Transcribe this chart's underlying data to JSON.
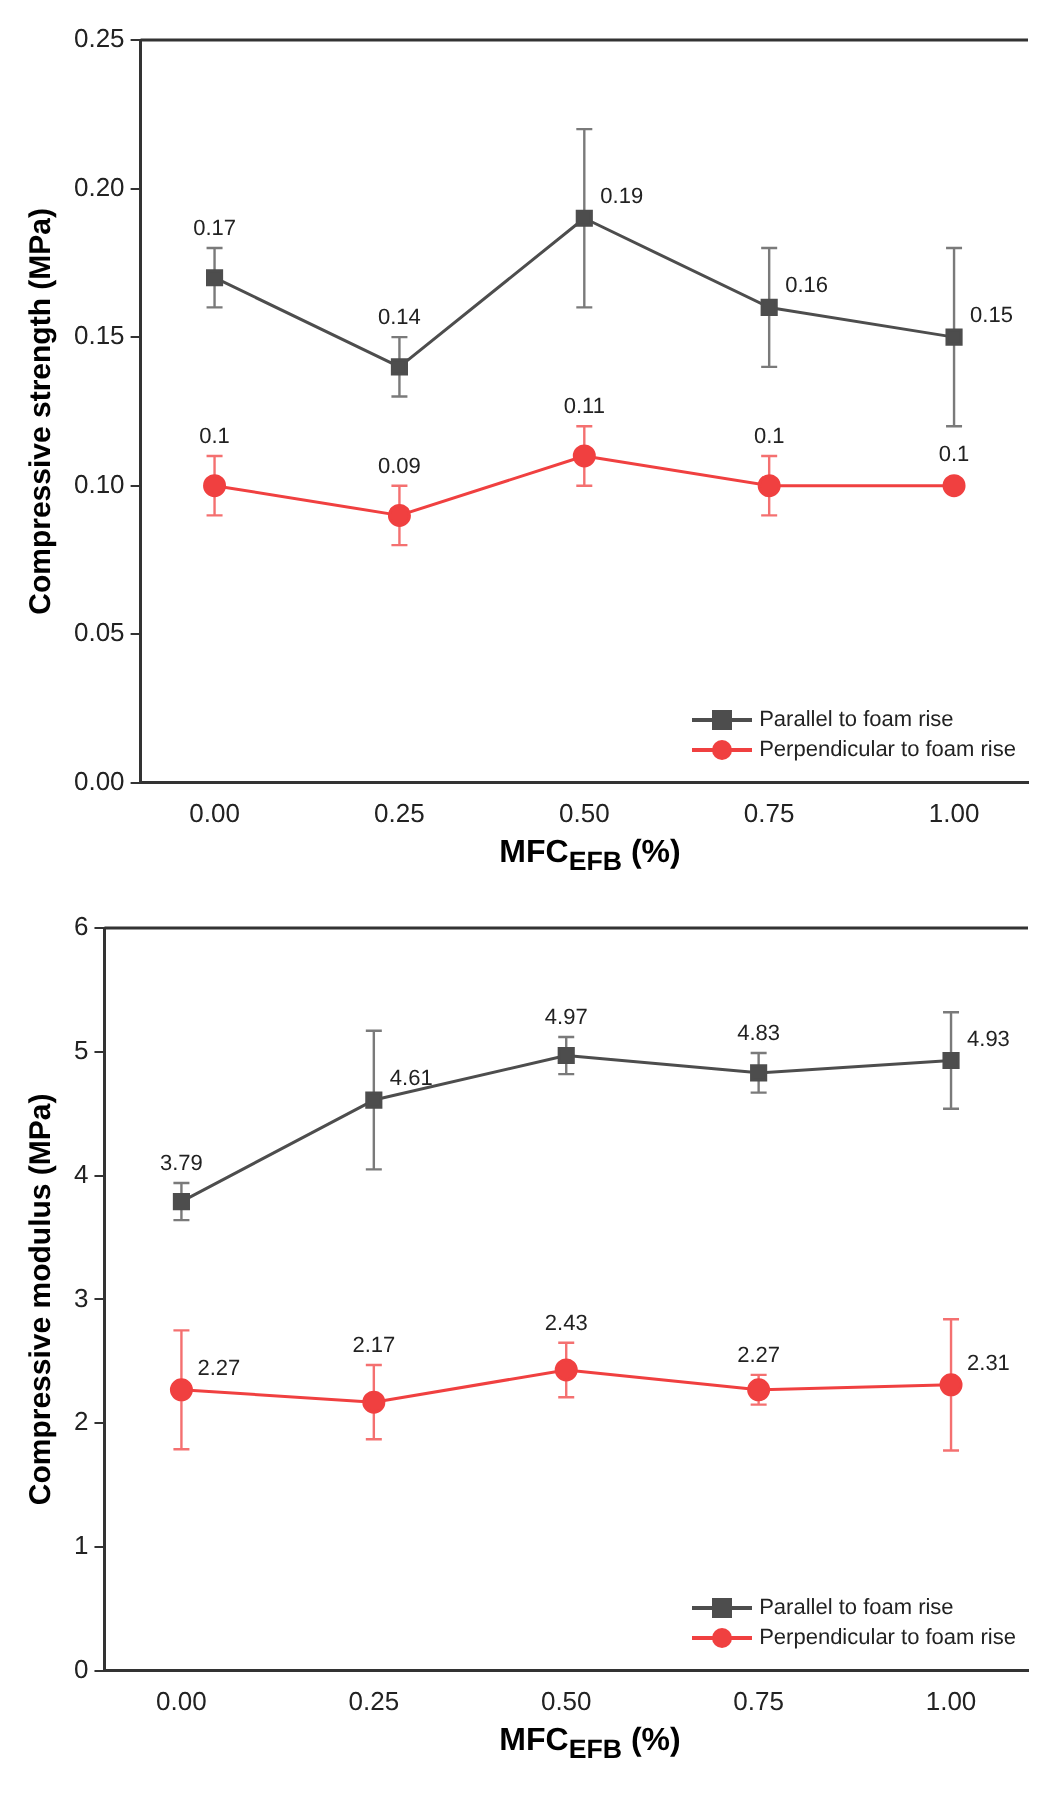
{
  "chart_data": [
    {
      "type": "line",
      "xlabel": "MFC$_{EFB}$ (%)",
      "ylabel": "Compressive strength (MPa)",
      "x": [
        0,
        0.25,
        0.5,
        0.75,
        1.0
      ],
      "xlim": [
        -0.1,
        1.1
      ],
      "xticks": [
        {
          "value": 0,
          "label": "0.00"
        },
        {
          "value": 0.25,
          "label": "0.25"
        },
        {
          "value": 0.5,
          "label": "0.50"
        },
        {
          "value": 0.75,
          "label": "0.75"
        },
        {
          "value": 1,
          "label": "1.00"
        }
      ],
      "ylim": [
        0,
        0.25
      ],
      "yticks": [
        {
          "value": 0,
          "label": "0.00"
        },
        {
          "value": 0.05,
          "label": "0.05"
        },
        {
          "value": 0.1,
          "label": "0.10"
        },
        {
          "value": 0.15,
          "label": "0.15"
        },
        {
          "value": 0.2,
          "label": "0.20"
        },
        {
          "value": 0.25,
          "label": "0.25"
        }
      ],
      "grid": false,
      "legend": "bottom right",
      "data_labels": true,
      "series": [
        {
          "name": "Parallel to foam rise",
          "color": "#4d4d4d",
          "marker": "square",
          "values": [
            0.17,
            0.14,
            0.19,
            0.16,
            0.15
          ],
          "errors": [
            0.01,
            0.01,
            0.03,
            0.02,
            0.03
          ]
        },
        {
          "name": "Perpendicular to foam rise",
          "color": "#f04040",
          "marker": "circle",
          "values": [
            0.1,
            0.09,
            0.11,
            0.1,
            0.1
          ],
          "errors": [
            0.01,
            0.01,
            0.01,
            0.01,
            null
          ]
        }
      ]
    },
    {
      "type": "line",
      "xlabel": "MFC$_{EFB}$ (%)",
      "ylabel": "Compressive modulus (MPa)",
      "x": [
        0,
        0.25,
        0.5,
        0.75,
        1.0
      ],
      "xlim": [
        -0.1,
        1.1
      ],
      "xticks": [
        {
          "value": 0,
          "label": "0.00"
        },
        {
          "value": 0.25,
          "label": "0.25"
        },
        {
          "value": 0.5,
          "label": "0.50"
        },
        {
          "value": 0.75,
          "label": "0.75"
        },
        {
          "value": 1,
          "label": "1.00"
        }
      ],
      "ylim": [
        0,
        6
      ],
      "yticks": [
        0,
        1,
        2,
        3,
        4,
        5,
        6
      ],
      "grid": false,
      "legend": "bottom right",
      "data_labels": true,
      "series": [
        {
          "name": "Parallel to foam rise",
          "color": "#4d4d4d",
          "marker": "square",
          "values": [
            3.79,
            4.61,
            4.97,
            4.83,
            4.93
          ],
          "errors": [
            0.15,
            0.56,
            0.15,
            0.16,
            0.39
          ]
        },
        {
          "name": "Perpendicular to foam rise",
          "color": "#f04040",
          "marker": "circle",
          "values": [
            2.27,
            2.17,
            2.43,
            2.27,
            2.31
          ],
          "errors": [
            0.48,
            0.3,
            0.22,
            0.12,
            0.53
          ]
        }
      ]
    }
  ]
}
